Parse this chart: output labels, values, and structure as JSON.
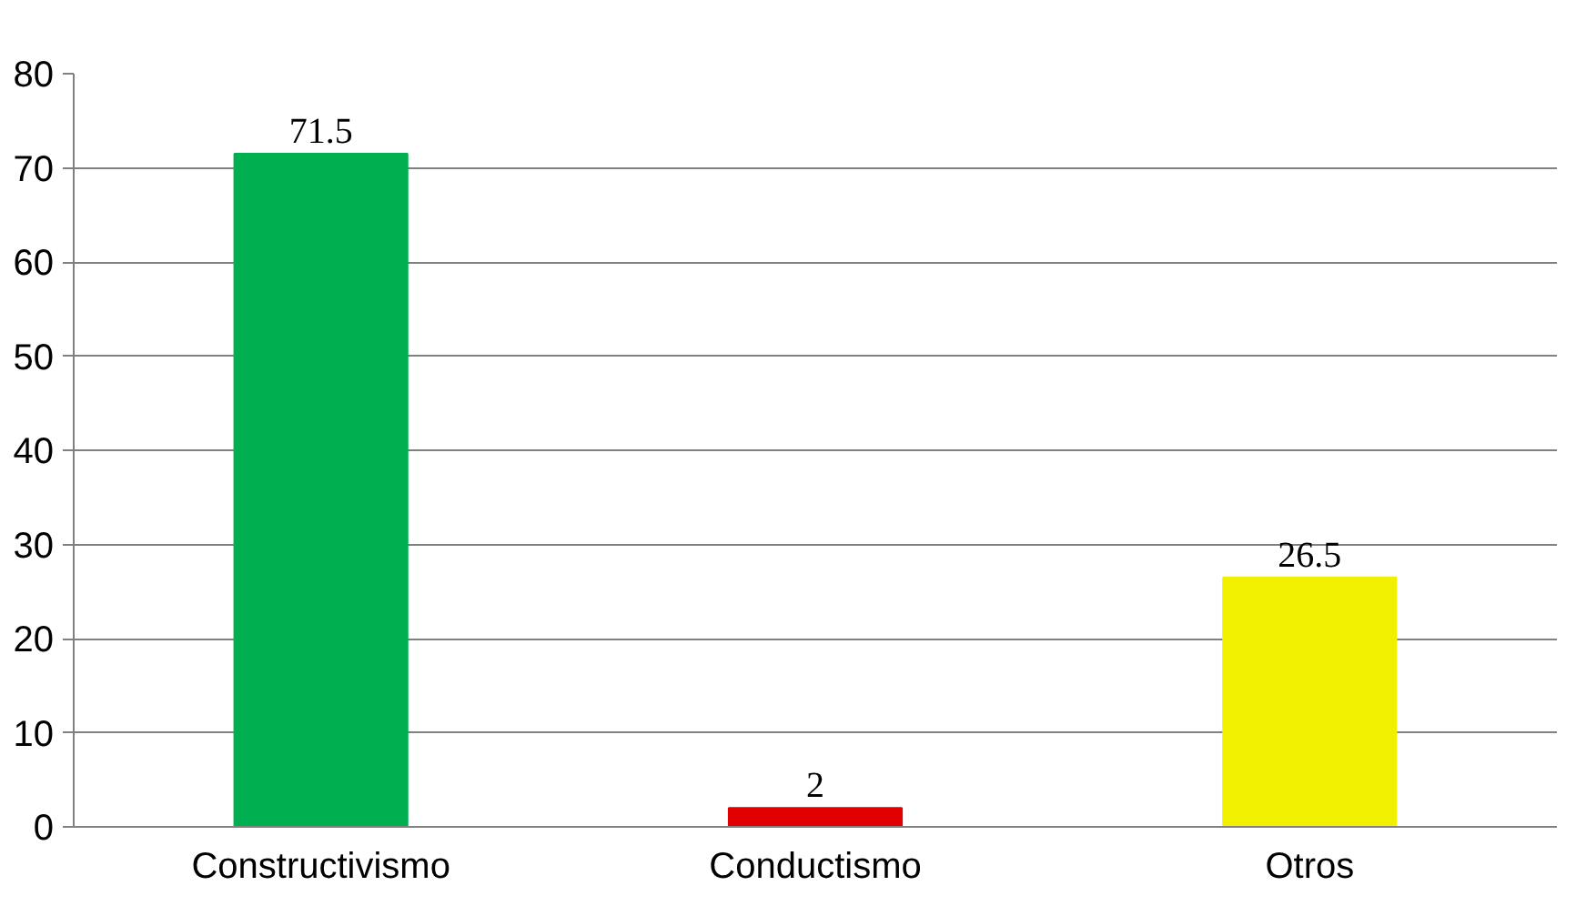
{
  "chart_data": {
    "type": "bar",
    "categories": [
      "Constructivismo",
      "Conductismo",
      "Otros"
    ],
    "values": [
      71.5,
      2,
      26.5
    ],
    "colors": [
      "#00b050",
      "#e00000",
      "#f0f000"
    ],
    "data_labels": true,
    "ylim": [
      0,
      80
    ],
    "yticks": [
      0,
      10,
      20,
      30,
      40,
      50,
      60,
      70,
      80
    ],
    "grid": "y"
  }
}
